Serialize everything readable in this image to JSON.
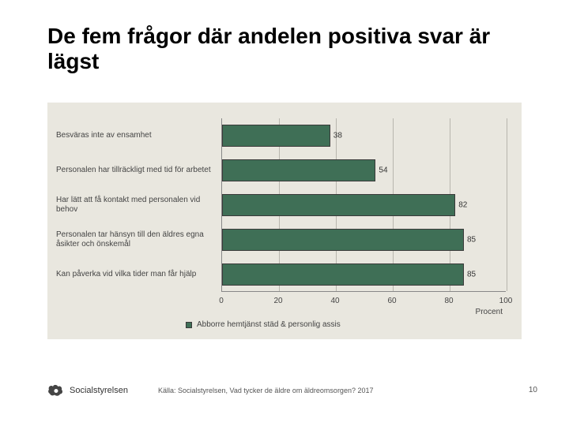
{
  "title": "De fem frågor där andelen positiva svar är lägst",
  "chart": {
    "type": "bar",
    "orientation": "horizontal",
    "background_color": "#e9e7df",
    "bar_color": "#3f6f56",
    "bar_border_color": "#3a3a3a",
    "grid_color": "#b8b6ae",
    "label_fontsize": 10,
    "xlim": [
      0,
      100
    ],
    "xtick_step": 20,
    "xunit": "Procent",
    "legend": "Abborre hemtjänst städ & personlig assis",
    "rows": [
      {
        "label": "Besväras inte av ensamhet",
        "value": 38
      },
      {
        "label": "Personalen har tillräckligt med tid för arbetet",
        "value": 54
      },
      {
        "label": "Har lätt att få kontakt med personalen vid behov",
        "value": 82
      },
      {
        "label": "Personalen tar hänsyn till den äldres egna åsikter och önskemål",
        "value": 85
      },
      {
        "label": "Kan påverka vid vilka tider man får hjälp",
        "value": 85
      }
    ]
  },
  "footer": {
    "brand": "Socialstyrelsen",
    "source": "Källa: Socialstyrelsen, Vad tycker de äldre om äldreomsorgen? 2017",
    "page": "10"
  }
}
